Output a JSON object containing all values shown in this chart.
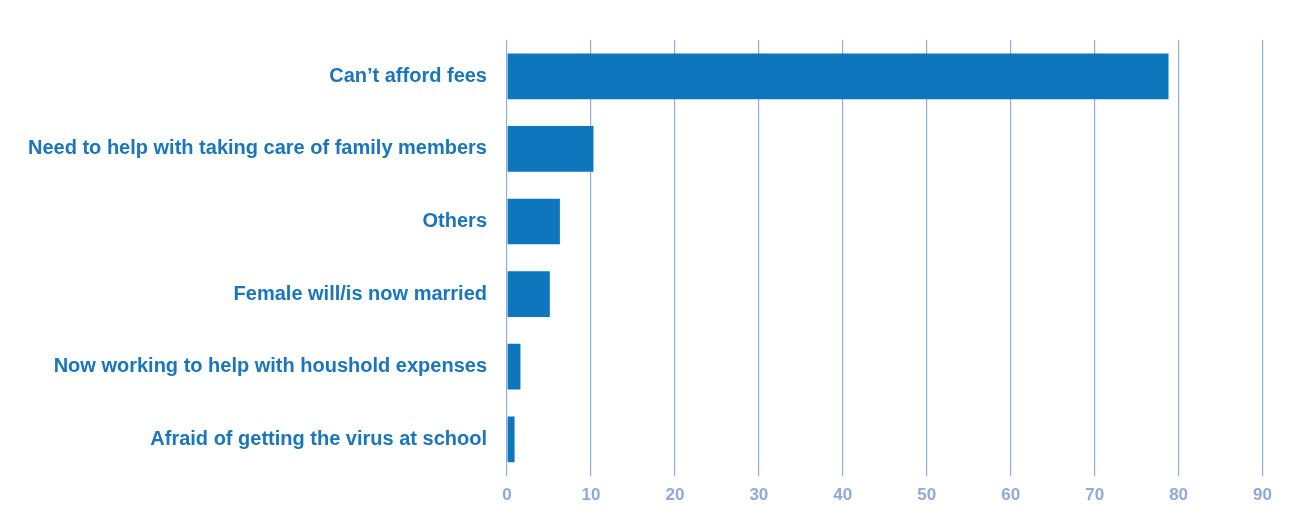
{
  "chart_data": {
    "type": "bar",
    "orientation": "horizontal",
    "categories": [
      "Can’t afford fees",
      "Need to help with taking care of family members",
      "Others",
      "Female will/is now married",
      "Now working to help with houshold expenses",
      "Afraid of getting the virus at school"
    ],
    "values": [
      78.8,
      10.3,
      6.3,
      5.1,
      1.6,
      0.9
    ],
    "color": "#0e76bc",
    "xlim": [
      0,
      90
    ],
    "xticks": [
      0,
      10,
      20,
      30,
      40,
      50,
      60,
      70,
      80,
      90
    ],
    "grid": "x"
  }
}
